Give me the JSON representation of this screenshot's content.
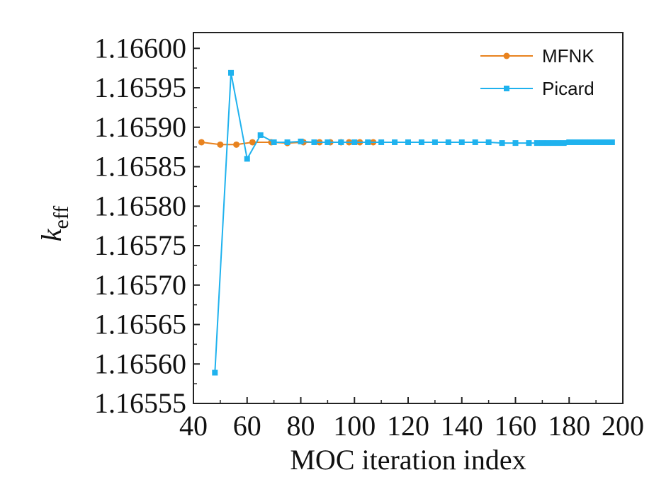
{
  "chart_data": {
    "type": "line",
    "xlabel": "MOC iteration index",
    "ylabel_main": "k",
    "ylabel_sub": "eff",
    "xlim": [
      40,
      200
    ],
    "ylim": [
      1.16555,
      1.16602
    ],
    "x_ticks": [
      40,
      60,
      80,
      100,
      120,
      140,
      160,
      180,
      200
    ],
    "x_tick_labels": [
      "40",
      "60",
      "80",
      "100",
      "120",
      "140",
      "160",
      "180",
      "200"
    ],
    "y_ticks": [
      1.16555,
      1.1656,
      1.16565,
      1.1657,
      1.16575,
      1.1658,
      1.16585,
      1.1659,
      1.16595,
      1.166
    ],
    "y_tick_labels": [
      "1.16555",
      "1.16560",
      "1.16565",
      "1.16570",
      "1.16575",
      "1.16580",
      "1.16585",
      "1.16590",
      "1.16595",
      "1.16600"
    ],
    "legend_position": "top-right",
    "grid": false,
    "series": [
      {
        "name": "MFNK",
        "color": "#E8821E",
        "marker": "circle",
        "x": [
          43,
          50,
          56,
          62,
          69,
          75,
          81,
          87,
          91,
          95,
          98,
          102,
          107
        ],
        "y": [
          1.165881,
          1.165878,
          1.165878,
          1.165881,
          1.165881,
          1.16588,
          1.165881,
          1.165881,
          1.165881,
          1.165881,
          1.165881,
          1.165881,
          1.165881
        ]
      },
      {
        "name": "Picard",
        "color": "#1FB2EE",
        "marker": "square",
        "x": [
          48,
          54,
          60,
          65,
          70,
          75,
          80,
          85,
          90,
          95,
          100,
          105,
          110,
          115,
          120,
          125,
          130,
          135,
          140,
          145,
          150,
          155,
          160,
          165,
          168,
          170,
          172,
          174,
          176,
          178,
          180,
          182,
          184,
          186,
          188,
          190,
          192,
          194,
          196
        ],
        "y": [
          1.165589,
          1.165969,
          1.16586,
          1.16589,
          1.165881,
          1.165881,
          1.165882,
          1.165881,
          1.165881,
          1.165881,
          1.165881,
          1.165881,
          1.165881,
          1.165881,
          1.165881,
          1.165881,
          1.165881,
          1.165881,
          1.165881,
          1.165881,
          1.165881,
          1.16588,
          1.16588,
          1.16588,
          1.16588,
          1.16588,
          1.16588,
          1.16588,
          1.16588,
          1.16588,
          1.165881,
          1.165881,
          1.165881,
          1.165881,
          1.165881,
          1.165881,
          1.165881,
          1.165881,
          1.165881
        ]
      }
    ]
  }
}
